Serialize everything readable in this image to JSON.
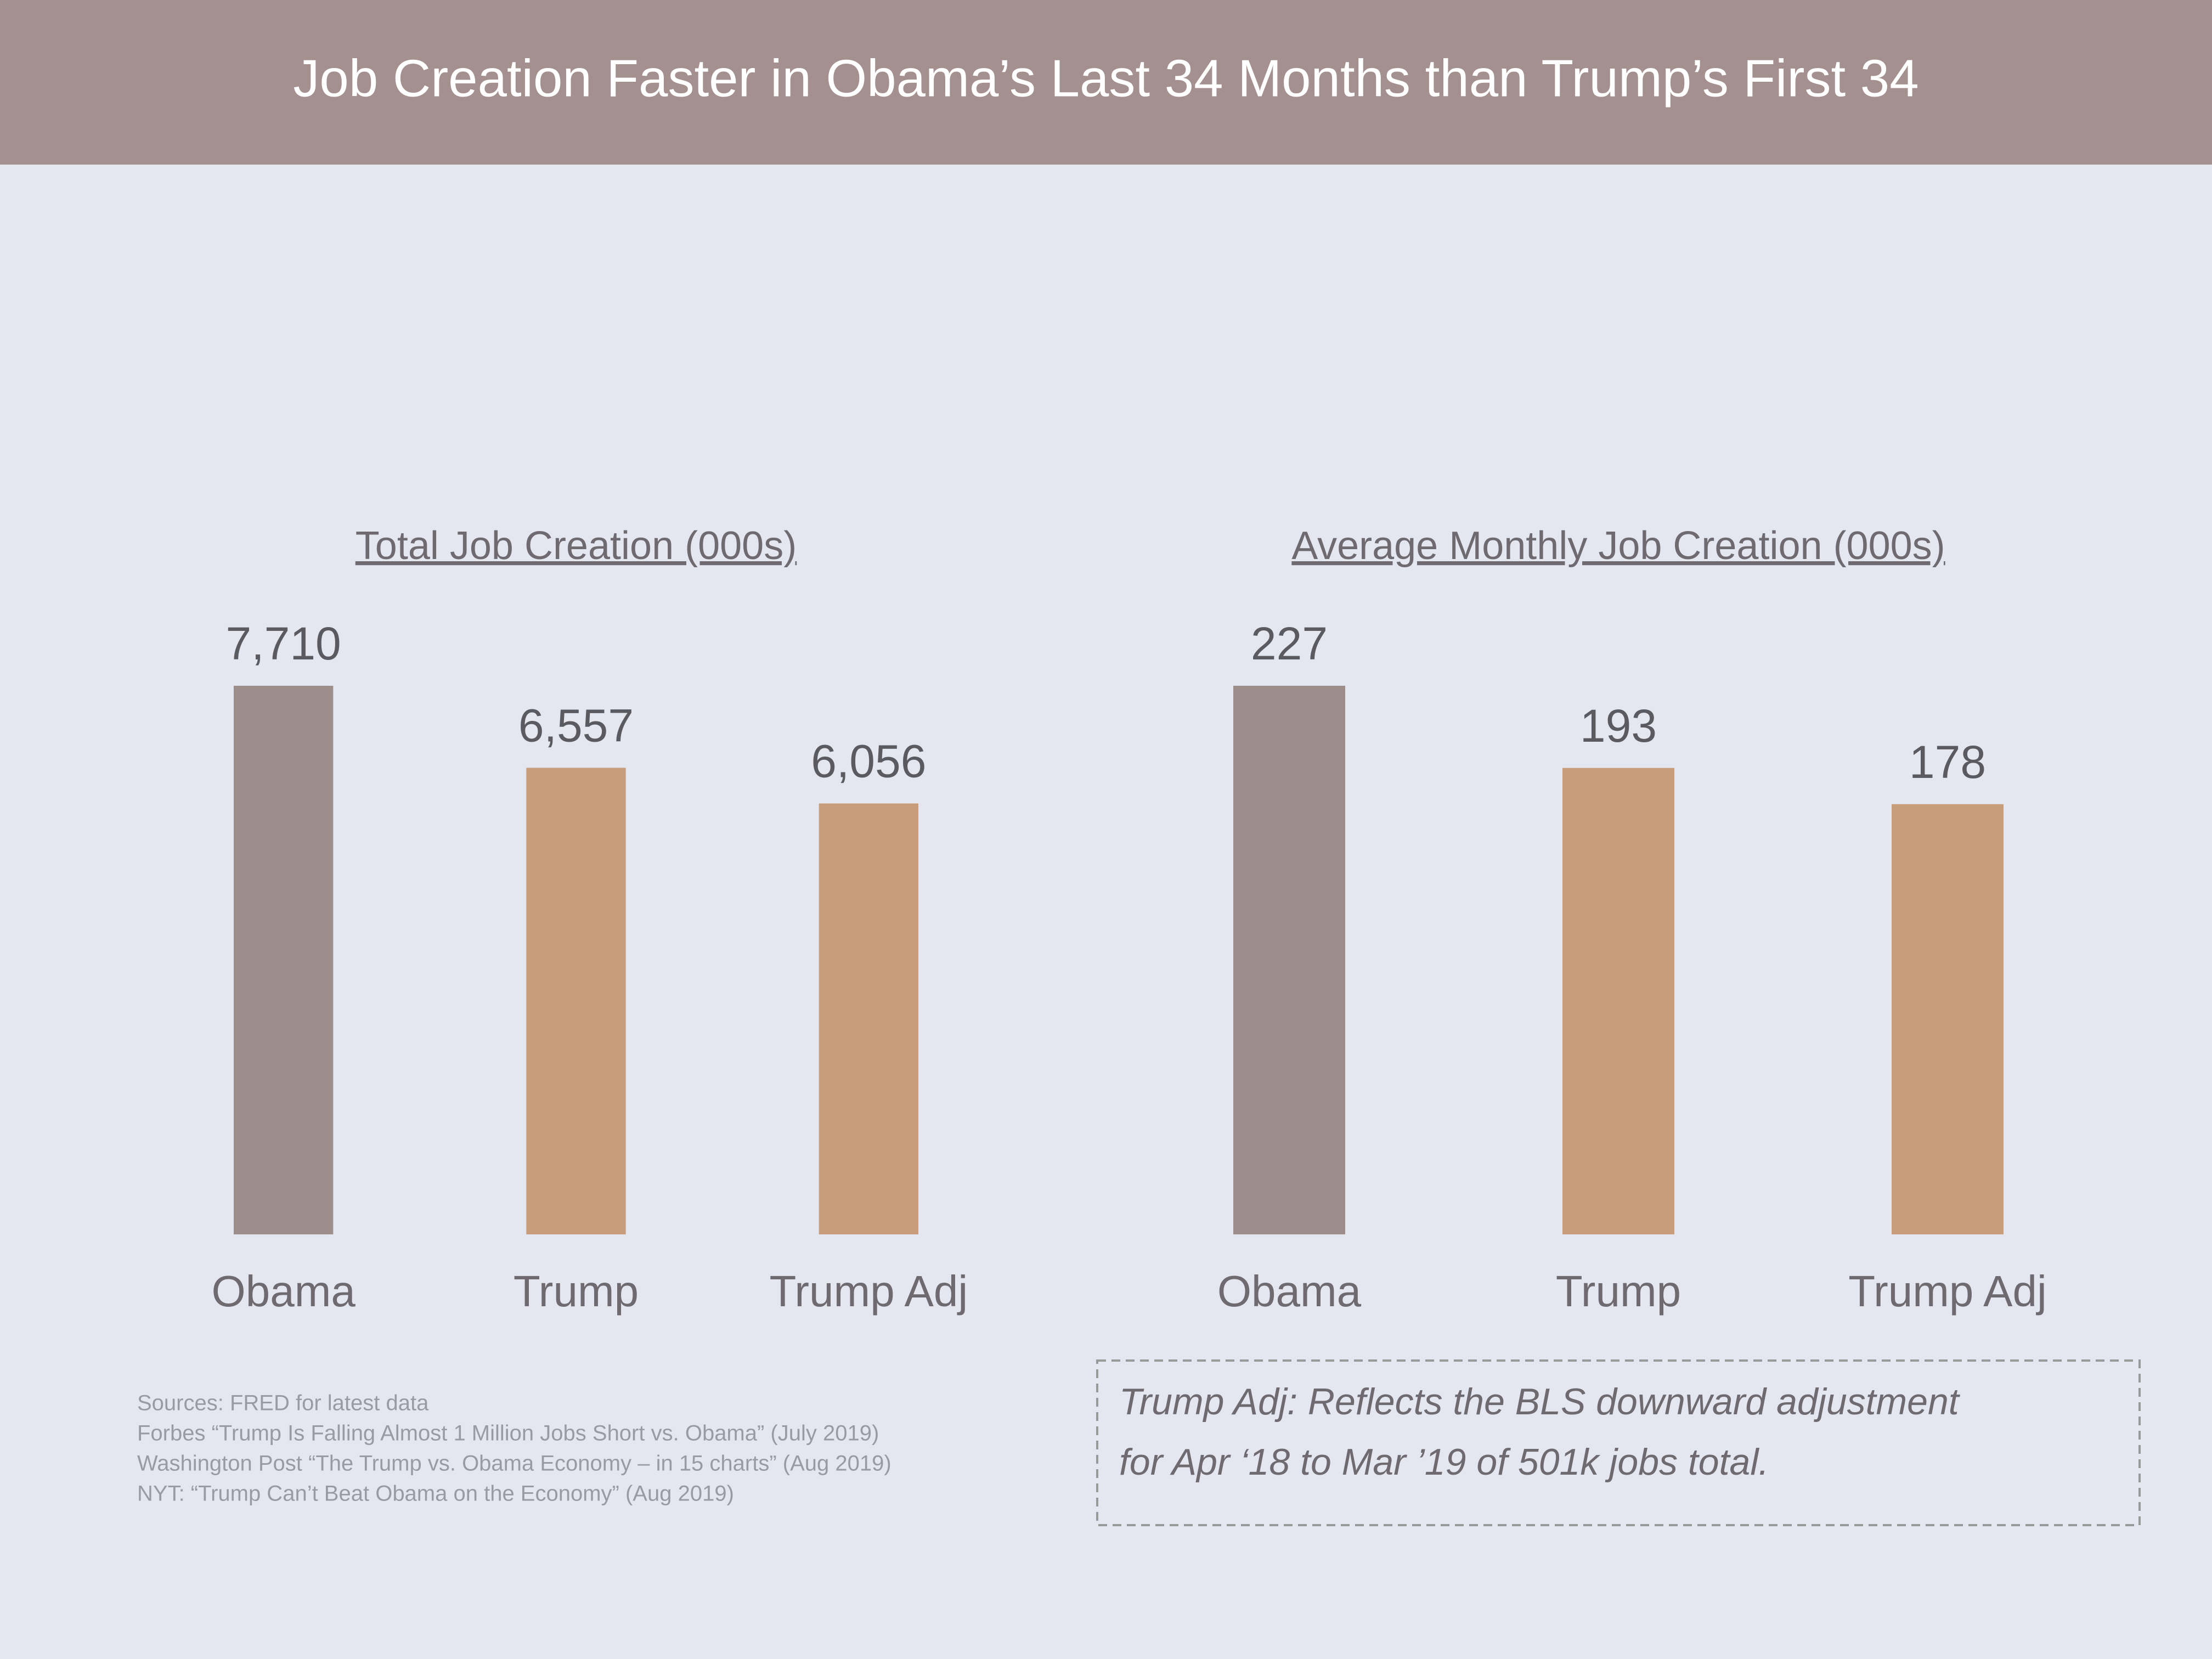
{
  "title": "Job Creation Faster in Obama’s Last 34 Months than Trump’s First 34",
  "chart_data": [
    {
      "type": "bar",
      "title": "Total Job Creation (000s)",
      "categories": [
        "Obama",
        "Trump",
        "Trump Adj"
      ],
      "values": [
        7710,
        6557,
        6056
      ],
      "value_labels": [
        "7,710",
        "6,557",
        "6,056"
      ],
      "colors": [
        "#9d8e8b",
        "#c79d7c",
        "#c79d7c"
      ]
    },
    {
      "type": "bar",
      "title": "Average Monthly Job Creation (000s)",
      "categories": [
        "Obama",
        "Trump",
        "Trump Adj"
      ],
      "values": [
        227,
        193,
        178
      ],
      "colors": [
        "#9d8e8b",
        "#c79d7c",
        "#c79d7c"
      ]
    }
  ],
  "sources": [
    "Sources:  FRED for latest data",
    "Forbes “Trump Is Falling Almost 1 Million Jobs Short vs. Obama” (July 2019)",
    "Washington Post “The Trump vs. Obama Economy – in 15 charts” (Aug 2019)",
    "NYT: “Trump Can’t Beat Obama on the Economy” (Aug 2019)"
  ],
  "note": [
    "Trump Adj:  Reflects the BLS downward adjustment",
    "for Apr ‘18 to Mar ’19 of 501k jobs total."
  ]
}
